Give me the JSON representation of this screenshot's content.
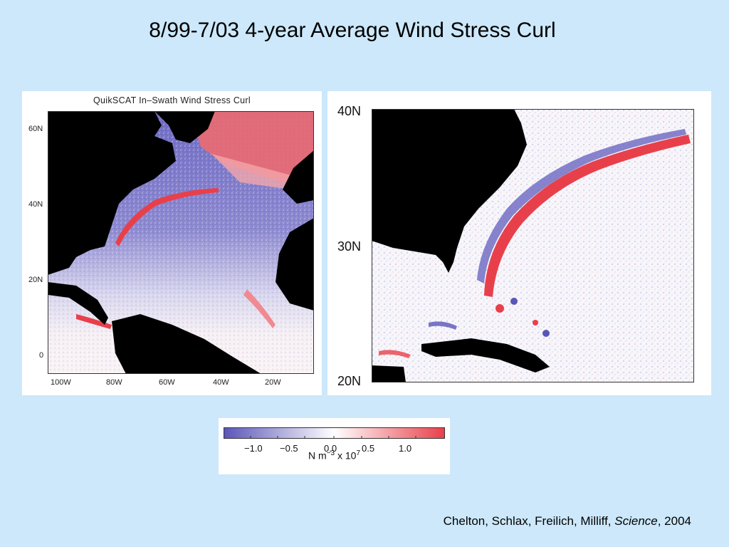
{
  "slide": {
    "title": "8/99-7/03 4-year Average Wind Stress Curl"
  },
  "left_map": {
    "title": "QuikSCAT In–Swath Wind Stress Curl",
    "lat_labels": [
      "60N",
      "40N",
      "20N",
      "0"
    ],
    "lon_labels": [
      "100W",
      "80W",
      "60W",
      "40W",
      "20W"
    ]
  },
  "right_map": {
    "lat_labels": [
      "40N",
      "30N",
      "20N"
    ]
  },
  "colorbar": {
    "tick_labels": [
      "−1.0",
      "−0.5",
      "0.0",
      "0.5",
      "1.0"
    ],
    "units_prefix": "N m",
    "units_exp1": "−3",
    "units_mid": " x 10",
    "units_exp2": "7",
    "colors": {
      "negative": "#5a55b8",
      "zero": "#ffffff",
      "positive": "#e8404a"
    }
  },
  "credit": {
    "authors": "Chelton, Schlax, Freilich, Milliff, ",
    "journal": "Science",
    "year": ", 2004"
  },
  "colors": {
    "background": "#cce8fa",
    "land": "#000000"
  }
}
